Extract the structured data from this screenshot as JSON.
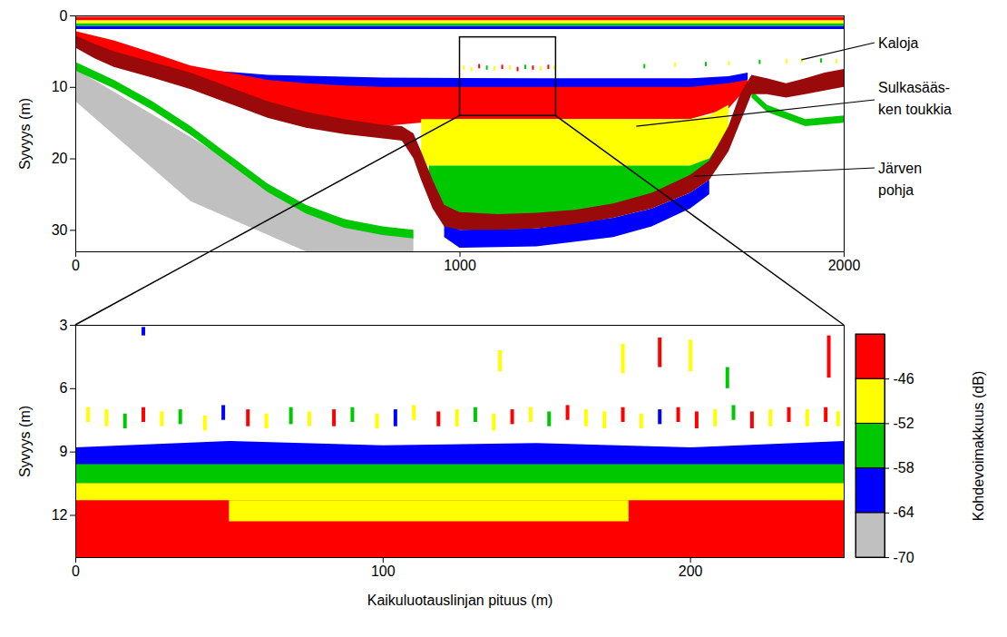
{
  "chart_data": [
    {
      "type": "echogram",
      "ylabel": "Syvyys (m)",
      "xlim": [
        0,
        2000
      ],
      "xticks": [
        0,
        1000,
        2000
      ],
      "ylim": [
        0,
        33
      ],
      "yticks": [
        0,
        10,
        20,
        30
      ],
      "layers": [
        {
          "x": [
            0,
            300,
            600,
            880
          ],
          "top": [
            7.5,
            17,
            27,
            31
          ],
          "bottom": [
            12,
            26,
            33,
            33
          ],
          "value": -68
        },
        {
          "x": [
            0,
            100,
            200,
            300,
            400,
            500,
            600,
            700,
            800,
            880
          ],
          "top": [
            6.5,
            9,
            12,
            15.5,
            19.5,
            23.5,
            26.5,
            28.5,
            29.5,
            30
          ],
          "bottom": [
            7.7,
            10.2,
            13.2,
            16.7,
            20.7,
            24.7,
            27.7,
            29.7,
            30.7,
            31.2
          ],
          "value": -56
        },
        {
          "x": [
            1760,
            1800,
            1900,
            2000
          ],
          "top": [
            10.5,
            12.5,
            14.5,
            14
          ],
          "bottom": [
            11.5,
            13.5,
            15.5,
            15
          ],
          "value": -56
        },
        {
          "x": [
            960,
            1000,
            1200,
            1400,
            1500,
            1600,
            1650
          ],
          "top": [
            29,
            30,
            29.8,
            28.3,
            27,
            24.8,
            23
          ],
          "bottom": [
            31,
            32.5,
            32.3,
            31,
            29.5,
            27,
            25
          ],
          "value": -62
        },
        {
          "x": [
            0,
            2000
          ],
          "top": [
            0.2,
            0.2
          ],
          "bottom": [
            0.7,
            0.7
          ],
          "value": -44
        },
        {
          "x": [
            0,
            2000
          ],
          "top": [
            0.7,
            0.7
          ],
          "bottom": [
            1.1,
            1.1
          ],
          "value": -49
        },
        {
          "x": [
            0,
            2000
          ],
          "top": [
            1.1,
            1.1
          ],
          "bottom": [
            1.5,
            1.5
          ],
          "value": -55
        },
        {
          "x": [
            0,
            2000
          ],
          "top": [
            1.5,
            1.5
          ],
          "bottom": [
            1.9,
            1.9
          ],
          "value": -61
        },
        {
          "x": [
            300,
            500,
            800,
            1200,
            1600,
            1700,
            1750
          ],
          "top": [
            7.5,
            8.3,
            8.7,
            8.8,
            8.8,
            8.5,
            8
          ],
          "bottom": [
            9.5,
            10,
            10.3,
            10.3,
            10.3,
            10,
            9
          ],
          "value": -61
        },
        {
          "x": [
            0,
            100,
            200,
            300,
            400,
            500,
            600,
            700,
            800,
            1000,
            1200,
            1400,
            1600,
            1700,
            1750
          ],
          "top": [
            2.2,
            3.5,
            5.2,
            7,
            8,
            9,
            9.5,
            9.8,
            10,
            10,
            10,
            10,
            10,
            9.5,
            9
          ],
          "bottom": [
            3.5,
            5.5,
            7.5,
            10,
            12,
            13.5,
            14.5,
            15,
            15.5,
            14.5,
            14.5,
            14.5,
            14.5,
            13,
            10
          ],
          "value": -45
        },
        {
          "x": [
            900,
            1000,
            1200,
            1400,
            1600,
            1650,
            1700
          ],
          "top": [
            14.5,
            14.5,
            14.5,
            14.5,
            14.5,
            14,
            12.5
          ],
          "bottom": [
            21,
            21,
            21,
            21,
            21,
            20,
            16
          ],
          "value": -51
        },
        {
          "x": [
            920,
            960,
            1000,
            1200,
            1400,
            1500,
            1600,
            1650,
            1700
          ],
          "top": [
            21,
            21,
            21,
            21,
            21,
            21,
            21,
            20,
            16
          ],
          "bottom": [
            24,
            27,
            28.5,
            28.3,
            27.5,
            26,
            23.5,
            21,
            16.5
          ],
          "value": -55
        }
      ],
      "bottom": {
        "x": [
          0,
          50,
          100,
          200,
          300,
          400,
          500,
          600,
          700,
          800,
          850,
          880,
          900,
          930,
          960,
          1000,
          1100,
          1200,
          1300,
          1400,
          1500,
          1600,
          1650,
          1700,
          1730,
          1760,
          1800,
          1850,
          1900,
          1950,
          2000
        ],
        "top": [
          2.8,
          4,
          5,
          6.5,
          8,
          10,
          12,
          13.5,
          14.5,
          15.3,
          15.5,
          16.5,
          19,
          23,
          26.5,
          27.5,
          27.8,
          27.6,
          27.2,
          26.3,
          24.8,
          22.3,
          20.3,
          15.5,
          11,
          8.3,
          8.8,
          9.5,
          8.8,
          8,
          7.5
        ],
        "bottom": [
          4.5,
          6,
          7.2,
          8.7,
          10.3,
          12.3,
          14.3,
          15.7,
          16.6,
          17.2,
          17.5,
          20,
          23,
          27,
          29.5,
          30,
          30,
          29.8,
          29.2,
          28.3,
          27,
          24.8,
          23,
          19,
          15,
          11,
          11,
          11.5,
          11,
          10.5,
          10
        ],
        "color": "#9b0a0a"
      },
      "fish": {
        "x": [
          1010,
          1030,
          1050,
          1070,
          1090,
          1110,
          1130,
          1150,
          1170,
          1190,
          1210,
          1230,
          1245,
          1480,
          1560,
          1640,
          1700,
          1780,
          1850,
          1890,
          1940,
          1980
        ],
        "top": [
          7.0,
          7.2,
          6.8,
          7.0,
          7.1,
          6.9,
          7.0,
          7.2,
          6.9,
          7.0,
          7.1,
          6.9,
          7.0,
          6.8,
          6.6,
          6.5,
          6.4,
          6.2,
          6.1,
          6.0,
          6.0,
          6.1
        ],
        "bottom": [
          7.6,
          7.8,
          7.4,
          7.6,
          7.7,
          7.5,
          7.6,
          7.8,
          7.5,
          7.6,
          7.7,
          7.5,
          7.6,
          7.4,
          7.2,
          7.1,
          7.0,
          6.8,
          6.7,
          6.6,
          6.6,
          6.7
        ],
        "values": [
          -47,
          -52,
          -45,
          -56,
          -48,
          -45,
          -50,
          -46,
          -55,
          -45,
          -49,
          -45,
          -47,
          -56,
          -52,
          -58,
          -50,
          -56,
          -52,
          -48,
          -55,
          -50
        ]
      },
      "zoom": {
        "xlim": [
          1000,
          1250
        ],
        "ylim": [
          3,
          14
        ]
      },
      "annotations": [
        {
          "text": "Kaloja",
          "x": 1890,
          "y": 6.2
        },
        {
          "text": "Sulkasääs-\nken toukkia",
          "x": 1460,
          "y": 15.5
        },
        {
          "text": "Järven\npohja",
          "x": 1610,
          "y": 22.5
        }
      ]
    },
    {
      "type": "echogram",
      "xlabel": "Kaikuluotauslinjan pituus (m)",
      "ylabel": "Syvyys (m)",
      "xlim": [
        0,
        250
      ],
      "xticks": [
        0,
        100,
        200
      ],
      "ylim": [
        3,
        14
      ],
      "yticks": [
        3,
        6,
        9,
        12
      ],
      "layers": [
        {
          "x": [
            0,
            50,
            100,
            150,
            200,
            250
          ],
          "top": [
            8.8,
            8.5,
            8.7,
            8.6,
            8.8,
            8.5
          ],
          "bottom": [
            9.7,
            9.7,
            9.7,
            9.7,
            9.7,
            9.7
          ],
          "value": -62
        },
        {
          "x": [
            0,
            250
          ],
          "top": [
            9.6,
            9.6
          ],
          "bottom": [
            10.6,
            10.6
          ],
          "value": -55
        },
        {
          "x": [
            0,
            250
          ],
          "top": [
            10.5,
            10.5
          ],
          "bottom": [
            11.4,
            11.4
          ],
          "value": -49
        },
        {
          "x": [
            0,
            250
          ],
          "top": [
            11.3,
            11.3
          ],
          "bottom": [
            14,
            14
          ],
          "value": -45
        },
        {
          "x": [
            50,
            180
          ],
          "top": [
            11.3,
            11.3
          ],
          "bottom": [
            12.3,
            12.3
          ],
          "value": -49
        }
      ],
      "fish": {
        "x": [
          4,
          10,
          16,
          22,
          28,
          34,
          42,
          48,
          56,
          62,
          70,
          76,
          84,
          90,
          98,
          104,
          110,
          118,
          124,
          130,
          136,
          142,
          148,
          154,
          160,
          166,
          172,
          178,
          184,
          190,
          196,
          202,
          208,
          214,
          220,
          226,
          232,
          238,
          244,
          248,
          138,
          178,
          190,
          200,
          212,
          245,
          22
        ],
        "top": [
          6.9,
          7.0,
          7.2,
          6.9,
          7.1,
          7.0,
          7.3,
          6.8,
          7.0,
          7.2,
          6.9,
          7.1,
          7.0,
          6.9,
          7.2,
          7.0,
          6.8,
          7.1,
          7.0,
          6.9,
          7.2,
          7.0,
          6.9,
          7.1,
          6.8,
          7.0,
          7.1,
          6.9,
          7.2,
          7.0,
          6.9,
          7.1,
          7.0,
          6.8,
          7.1,
          7.0,
          6.9,
          7.0,
          6.9,
          7.1,
          4.2,
          3.9,
          3.6,
          3.7,
          5.0,
          3.5,
          3.1
        ],
        "bottom": [
          7.6,
          7.8,
          7.9,
          7.6,
          7.8,
          7.7,
          8.0,
          7.5,
          7.8,
          7.9,
          7.7,
          7.8,
          7.8,
          7.6,
          7.9,
          7.8,
          7.5,
          7.8,
          7.8,
          7.6,
          8.0,
          7.7,
          7.6,
          7.8,
          7.5,
          7.8,
          7.9,
          7.6,
          7.9,
          7.7,
          7.6,
          7.9,
          7.8,
          7.5,
          7.9,
          7.8,
          7.6,
          7.8,
          7.6,
          7.8,
          5.2,
          5.3,
          5.0,
          5.2,
          6.0,
          5.5,
          3.5
        ],
        "values": [
          -47,
          -50,
          -55,
          -45,
          -49,
          -56,
          -52,
          -62,
          -45,
          -48,
          -56,
          -50,
          -45,
          -53,
          -47,
          -60,
          -49,
          -45,
          -51,
          -56,
          -47,
          -45,
          -50,
          -57,
          -45,
          -48,
          -52,
          -45,
          -49,
          -62,
          -46,
          -45,
          -50,
          -55,
          -45,
          -48,
          -45,
          -51,
          -45,
          -47,
          -50,
          -47,
          -45,
          -48,
          -56,
          -45,
          -60
        ]
      },
      "colorbar": {
        "label": "Kohdevoimakkuus (dB)",
        "range": [
          -70,
          -40
        ],
        "ticks": [
          -70,
          -64,
          -58,
          -52,
          -46
        ],
        "colors": [
          "#c0c0c0",
          "#0000ff",
          "#00c800",
          "#ffff00",
          "#ff0000"
        ]
      }
    }
  ]
}
